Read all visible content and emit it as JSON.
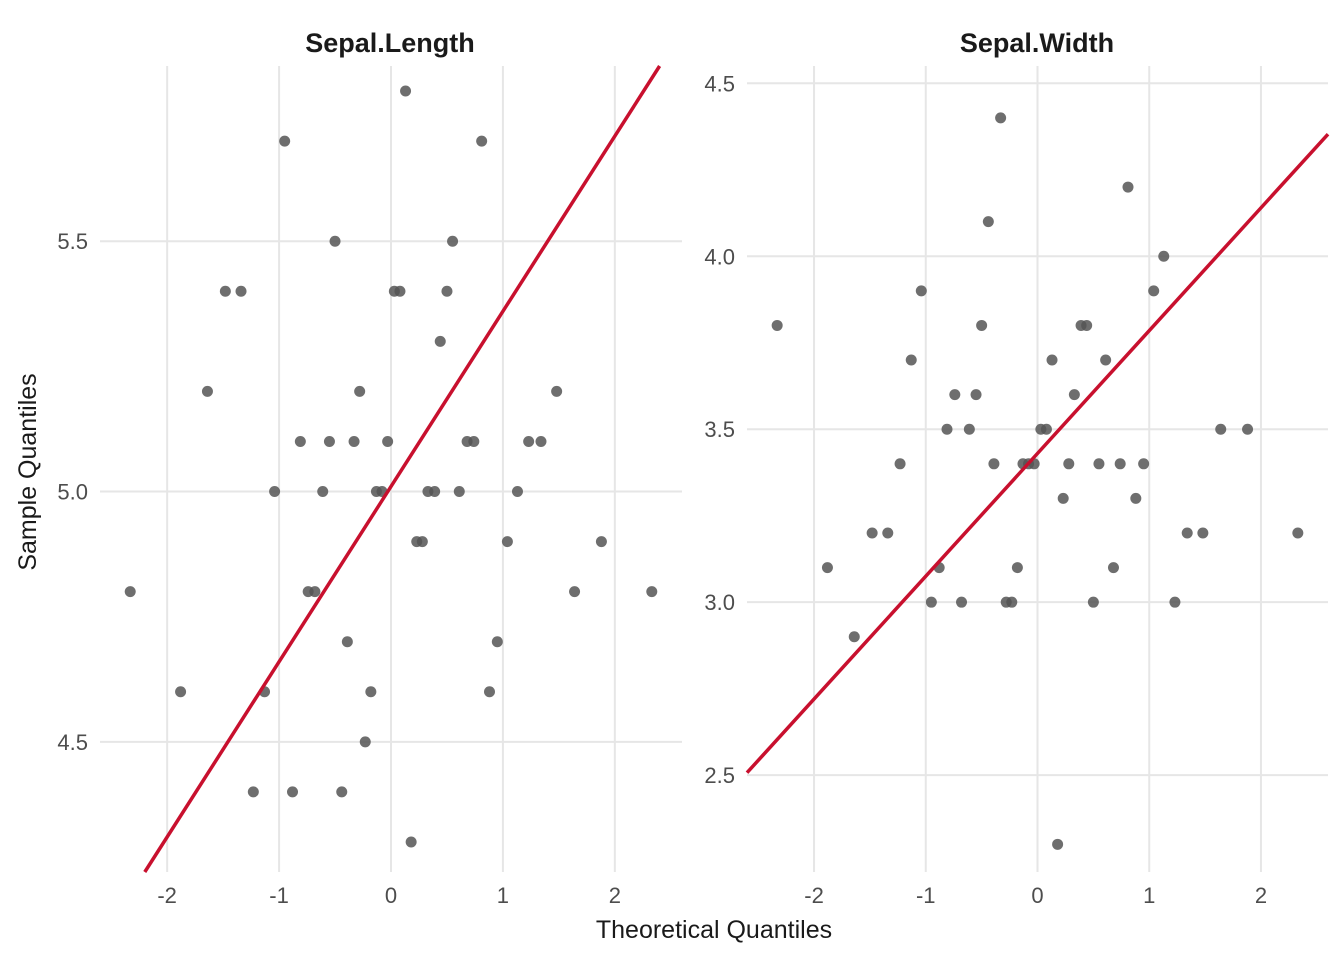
{
  "xlabel": "Theoretical Quantiles",
  "ylabel": "Sample Quantiles",
  "colors": {
    "points": "#555555",
    "reference_line": "#c8102e",
    "grid": "#e6e6e6"
  },
  "chart_data": [
    {
      "type": "scatter",
      "title": "Sepal.Length",
      "xlim": [
        -2.6,
        2.6
      ],
      "ylim": [
        4.24,
        5.85
      ],
      "x_ticks": [
        -2,
        -1,
        0,
        1,
        2
      ],
      "x_tick_labels": [
        "-2",
        "-1",
        "0",
        "1",
        "2"
      ],
      "y_ticks": [
        4.5,
        5.0,
        5.5
      ],
      "y_tick_labels": [
        "4.5",
        "5.0",
        "5.5"
      ],
      "grid": true,
      "reference_line": {
        "intercept": 5.01,
        "slope": 0.35
      },
      "points": [
        [
          -2.33,
          4.8
        ],
        [
          -1.88,
          4.6
        ],
        [
          -1.64,
          5.2
        ],
        [
          -1.48,
          5.4
        ],
        [
          -1.34,
          5.4
        ],
        [
          -1.23,
          4.4
        ],
        [
          -1.13,
          4.6
        ],
        [
          -1.04,
          5.0
        ],
        [
          -0.95,
          5.7
        ],
        [
          -0.88,
          4.4
        ],
        [
          -0.81,
          5.1
        ],
        [
          -0.74,
          4.8
        ],
        [
          -0.68,
          4.8
        ],
        [
          -0.61,
          5.0
        ],
        [
          -0.55,
          5.1
        ],
        [
          -0.5,
          5.5
        ],
        [
          -0.44,
          4.4
        ],
        [
          -0.39,
          4.7
        ],
        [
          -0.33,
          5.1
        ],
        [
          -0.28,
          5.2
        ],
        [
          -0.23,
          4.5
        ],
        [
          -0.18,
          4.6
        ],
        [
          -0.13,
          5.0
        ],
        [
          -0.08,
          5.0
        ],
        [
          -0.03,
          5.1
        ],
        [
          0.03,
          5.4
        ],
        [
          0.08,
          5.4
        ],
        [
          0.13,
          5.8
        ],
        [
          0.18,
          4.3
        ],
        [
          0.23,
          4.9
        ],
        [
          0.28,
          4.9
        ],
        [
          0.33,
          5.0
        ],
        [
          0.39,
          5.0
        ],
        [
          0.44,
          5.3
        ],
        [
          0.5,
          5.4
        ],
        [
          0.55,
          5.5
        ],
        [
          0.61,
          5.0
        ],
        [
          0.68,
          5.1
        ],
        [
          0.74,
          5.1
        ],
        [
          0.81,
          5.7
        ],
        [
          0.88,
          4.6
        ],
        [
          0.95,
          4.7
        ],
        [
          1.04,
          4.9
        ],
        [
          1.13,
          5.0
        ],
        [
          1.23,
          5.1
        ],
        [
          1.34,
          5.1
        ],
        [
          1.48,
          5.2
        ],
        [
          1.64,
          4.8
        ],
        [
          1.88,
          4.9
        ],
        [
          2.33,
          4.8
        ]
      ]
    },
    {
      "type": "scatter",
      "title": "Sepal.Width",
      "xlim": [
        -2.6,
        2.6
      ],
      "ylim": [
        2.22,
        4.55
      ],
      "x_ticks": [
        -2,
        -1,
        0,
        1,
        2
      ],
      "x_tick_labels": [
        "-2",
        "-1",
        "0",
        "1",
        "2"
      ],
      "y_ticks": [
        2.5,
        3.0,
        3.5,
        4.0,
        4.5
      ],
      "y_tick_labels": [
        "2.5",
        "3.0",
        "3.5",
        "4.0",
        "4.5"
      ],
      "grid": true,
      "reference_line": {
        "intercept": 3.43,
        "slope": 0.355
      },
      "points": [
        [
          -2.33,
          3.8
        ],
        [
          -1.88,
          3.1
        ],
        [
          -1.64,
          2.9
        ],
        [
          -1.48,
          3.2
        ],
        [
          -1.34,
          3.2
        ],
        [
          -1.23,
          3.4
        ],
        [
          -1.13,
          3.7
        ],
        [
          -1.04,
          3.9
        ],
        [
          -0.95,
          3.0
        ],
        [
          -0.88,
          3.1
        ],
        [
          -0.81,
          3.5
        ],
        [
          -0.74,
          3.6
        ],
        [
          -0.68,
          3.0
        ],
        [
          -0.61,
          3.5
        ],
        [
          -0.55,
          3.6
        ],
        [
          -0.5,
          3.8
        ],
        [
          -0.44,
          4.1
        ],
        [
          -0.39,
          3.4
        ],
        [
          -0.33,
          4.4
        ],
        [
          -0.28,
          3.0
        ],
        [
          -0.23,
          3.0
        ],
        [
          -0.18,
          3.1
        ],
        [
          -0.13,
          3.4
        ],
        [
          -0.08,
          3.4
        ],
        [
          -0.03,
          3.4
        ],
        [
          0.03,
          3.5
        ],
        [
          0.08,
          3.5
        ],
        [
          0.13,
          3.7
        ],
        [
          0.18,
          2.3
        ],
        [
          0.23,
          3.3
        ],
        [
          0.28,
          3.4
        ],
        [
          0.33,
          3.6
        ],
        [
          0.39,
          3.8
        ],
        [
          0.44,
          3.8
        ],
        [
          0.5,
          3.0
        ],
        [
          0.55,
          3.4
        ],
        [
          0.61,
          3.7
        ],
        [
          0.68,
          3.1
        ],
        [
          0.74,
          3.4
        ],
        [
          0.81,
          4.2
        ],
        [
          0.88,
          3.3
        ],
        [
          0.95,
          3.4
        ],
        [
          1.04,
          3.9
        ],
        [
          1.13,
          4.0
        ],
        [
          1.23,
          3.0
        ],
        [
          1.34,
          3.2
        ],
        [
          1.48,
          3.2
        ],
        [
          1.64,
          3.5
        ],
        [
          1.88,
          3.5
        ],
        [
          2.33,
          3.2
        ]
      ]
    }
  ]
}
